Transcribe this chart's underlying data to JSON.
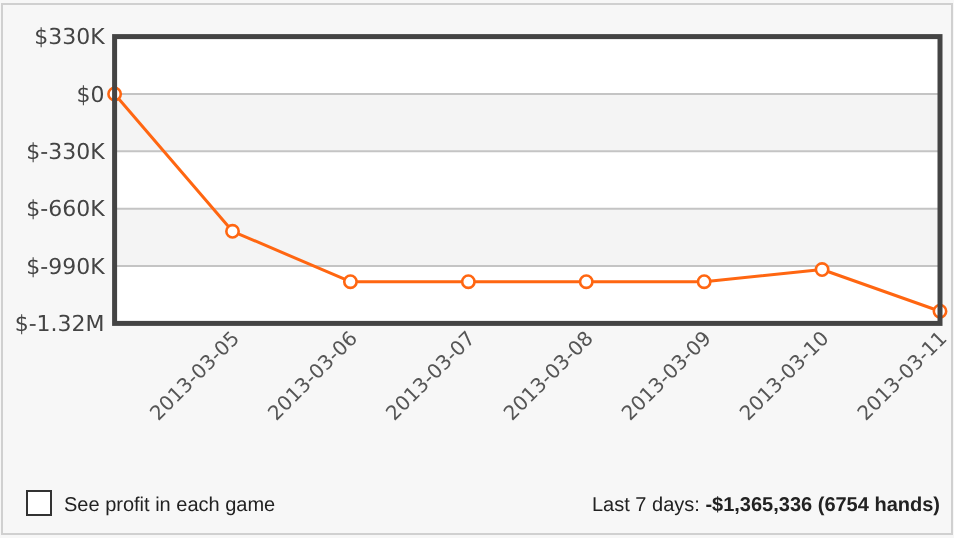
{
  "chart_data": {
    "type": "line",
    "categories": [
      null,
      "2013-03-05",
      "2013-03-06",
      "2013-03-07",
      "2013-03-08",
      "2013-03-09",
      "2013-03-10",
      "2013-03-11"
    ],
    "series": [
      {
        "color": "#ff6611",
        "values": [
          0,
          -790000,
          -1080000,
          -1080000,
          -1080000,
          -1080000,
          -1010000,
          -1250000
        ]
      }
    ],
    "ylim": [
      -1320000,
      330000
    ],
    "yticks": [
      {
        "value": 330000,
        "label": "$330K"
      },
      {
        "value": 0,
        "label": "$0"
      },
      {
        "value": -330000,
        "label": "$-330K"
      },
      {
        "value": -660000,
        "label": "$-660K"
      },
      {
        "value": -990000,
        "label": "$-990K"
      },
      {
        "value": -1320000,
        "label": "$-1.32M"
      }
    ],
    "grid": "y",
    "marker": "circle",
    "annotations": [
      "See profit in each game",
      "Last 7 days: -$1,365,336 (6754 hands)"
    ]
  }
}
